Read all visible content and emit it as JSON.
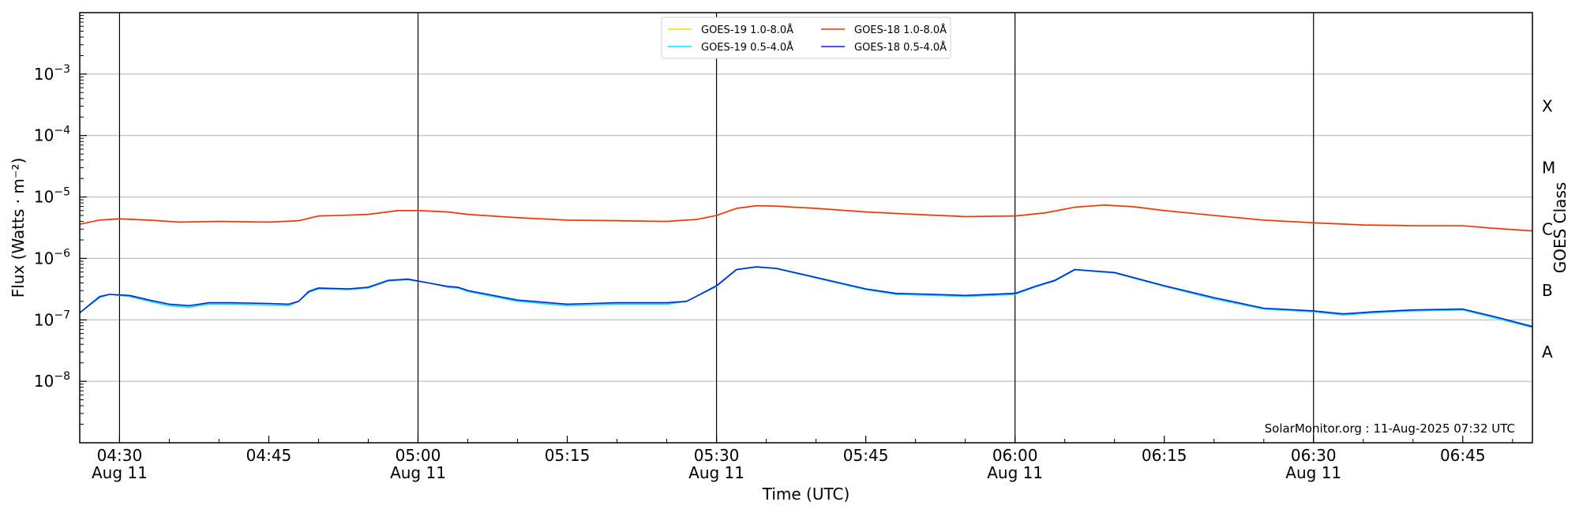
{
  "chart_data": {
    "type": "line",
    "xlabel": "Time (UTC)",
    "ylabel": "Flux (Watts · m⁻²)",
    "ylabel_right": "GOES Class",
    "annotation": "SolarMonitor.org : 11-Aug-2025 07:32 UTC",
    "y_scale": "log",
    "ylim": [
      1e-09,
      0.01
    ],
    "xlim": [
      "04:26",
      "06:52"
    ],
    "grid": "horizontal at decades",
    "legend_position": "top-center",
    "y_ticks": [
      {
        "value": 1e-08,
        "base": "10",
        "exp": "−8"
      },
      {
        "value": 1e-07,
        "base": "10",
        "exp": "−7"
      },
      {
        "value": 1e-06,
        "base": "10",
        "exp": "−6"
      },
      {
        "value": 1e-05,
        "base": "10",
        "exp": "−5"
      },
      {
        "value": 0.0001,
        "base": "10",
        "exp": "−4"
      },
      {
        "value": 0.001,
        "base": "10",
        "exp": "−3"
      }
    ],
    "x_ticks": [
      {
        "time": "04:30",
        "date": "Aug 11"
      },
      {
        "time": "04:45",
        "date": ""
      },
      {
        "time": "05:00",
        "date": "Aug 11"
      },
      {
        "time": "05:15",
        "date": ""
      },
      {
        "time": "05:30",
        "date": "Aug 11"
      },
      {
        "time": "05:45",
        "date": ""
      },
      {
        "time": "06:00",
        "date": "Aug 11"
      },
      {
        "time": "06:15",
        "date": ""
      },
      {
        "time": "06:30",
        "date": "Aug 11"
      },
      {
        "time": "06:45",
        "date": ""
      }
    ],
    "vertical_lines": [
      "04:30",
      "05:00",
      "05:30",
      "06:00",
      "06:30"
    ],
    "goes_classes": [
      {
        "label": "A",
        "value": 3e-08
      },
      {
        "label": "B",
        "value": 3e-07
      },
      {
        "label": "C",
        "value": 3e-06
      },
      {
        "label": "M",
        "value": 3e-05
      },
      {
        "label": "X",
        "value": 0.0003
      }
    ],
    "legend": [
      {
        "key": "g19_long",
        "label": "GOES-19 1.0-8.0Å"
      },
      {
        "key": "g19_short",
        "label": "GOES-19 0.5-4.0Å"
      },
      {
        "key": "g18_long",
        "label": "GOES-18 1.0-8.0Å"
      },
      {
        "key": "g18_short",
        "label": "GOES-18 0.5-4.0Å"
      }
    ],
    "series": [
      {
        "key": "g19_long",
        "name": "GOES-19 1.0-8.0Å",
        "color": "#ffd700",
        "points": [
          [
            "04:26",
            3.6e-06
          ],
          [
            "04:28",
            4.2e-06
          ],
          [
            "04:30",
            4.4e-06
          ],
          [
            "04:33",
            4.2e-06
          ],
          [
            "04:36",
            3.9e-06
          ],
          [
            "04:40",
            4e-06
          ],
          [
            "04:45",
            3.9e-06
          ],
          [
            "04:48",
            4.1e-06
          ],
          [
            "04:50",
            4.9e-06
          ],
          [
            "04:52",
            5e-06
          ],
          [
            "04:55",
            5.2e-06
          ],
          [
            "04:58",
            6e-06
          ],
          [
            "05:00",
            6e-06
          ],
          [
            "05:03",
            5.7e-06
          ],
          [
            "05:05",
            5.2e-06
          ],
          [
            "05:10",
            4.6e-06
          ],
          [
            "05:15",
            4.2e-06
          ],
          [
            "05:20",
            4.1e-06
          ],
          [
            "05:25",
            4e-06
          ],
          [
            "05:28",
            4.3e-06
          ],
          [
            "05:30",
            5e-06
          ],
          [
            "05:32",
            6.5e-06
          ],
          [
            "05:34",
            7.2e-06
          ],
          [
            "05:36",
            7.1e-06
          ],
          [
            "05:40",
            6.5e-06
          ],
          [
            "05:45",
            5.7e-06
          ],
          [
            "05:50",
            5.2e-06
          ],
          [
            "05:55",
            4.8e-06
          ],
          [
            "06:00",
            4.9e-06
          ],
          [
            "06:03",
            5.5e-06
          ],
          [
            "06:06",
            6.8e-06
          ],
          [
            "06:09",
            7.4e-06
          ],
          [
            "06:12",
            6.9e-06
          ],
          [
            "06:15",
            6e-06
          ],
          [
            "06:20",
            5e-06
          ],
          [
            "06:25",
            4.2e-06
          ],
          [
            "06:30",
            3.8e-06
          ],
          [
            "06:35",
            3.5e-06
          ],
          [
            "06:40",
            3.4e-06
          ],
          [
            "06:45",
            3.4e-06
          ],
          [
            "06:48",
            3.1e-06
          ],
          [
            "06:52",
            2.8e-06
          ]
        ]
      },
      {
        "key": "g18_long",
        "name": "GOES-18 1.0-8.0Å",
        "color": "#ff2a00",
        "points": [
          [
            "04:26",
            3.6e-06
          ],
          [
            "04:28",
            4.2e-06
          ],
          [
            "04:30",
            4.4e-06
          ],
          [
            "04:33",
            4.2e-06
          ],
          [
            "04:36",
            3.9e-06
          ],
          [
            "04:40",
            4e-06
          ],
          [
            "04:45",
            3.9e-06
          ],
          [
            "04:48",
            4.1e-06
          ],
          [
            "04:50",
            4.9e-06
          ],
          [
            "04:52",
            5e-06
          ],
          [
            "04:55",
            5.2e-06
          ],
          [
            "04:58",
            6e-06
          ],
          [
            "05:00",
            6e-06
          ],
          [
            "05:03",
            5.7e-06
          ],
          [
            "05:05",
            5.2e-06
          ],
          [
            "05:10",
            4.6e-06
          ],
          [
            "05:15",
            4.2e-06
          ],
          [
            "05:20",
            4.1e-06
          ],
          [
            "05:25",
            4e-06
          ],
          [
            "05:28",
            4.3e-06
          ],
          [
            "05:30",
            5e-06
          ],
          [
            "05:32",
            6.5e-06
          ],
          [
            "05:34",
            7.2e-06
          ],
          [
            "05:36",
            7.1e-06
          ],
          [
            "05:40",
            6.5e-06
          ],
          [
            "05:45",
            5.7e-06
          ],
          [
            "05:50",
            5.2e-06
          ],
          [
            "05:55",
            4.8e-06
          ],
          [
            "06:00",
            4.9e-06
          ],
          [
            "06:03",
            5.5e-06
          ],
          [
            "06:06",
            6.8e-06
          ],
          [
            "06:09",
            7.4e-06
          ],
          [
            "06:12",
            6.9e-06
          ],
          [
            "06:15",
            6e-06
          ],
          [
            "06:20",
            5e-06
          ],
          [
            "06:25",
            4.2e-06
          ],
          [
            "06:30",
            3.8e-06
          ],
          [
            "06:35",
            3.5e-06
          ],
          [
            "06:40",
            3.4e-06
          ],
          [
            "06:45",
            3.4e-06
          ],
          [
            "06:48",
            3.1e-06
          ],
          [
            "06:52",
            2.8e-06
          ]
        ]
      },
      {
        "key": "g19_short",
        "name": "GOES-19 0.5-4.0Å",
        "color": "#00e5ff",
        "points": [
          [
            "04:26",
            1.3e-07
          ],
          [
            "04:28",
            2.3e-07
          ],
          [
            "04:29",
            2.6e-07
          ],
          [
            "04:31",
            2.4e-07
          ],
          [
            "04:33",
            2e-07
          ],
          [
            "04:35",
            1.7e-07
          ],
          [
            "04:37",
            1.6e-07
          ],
          [
            "04:39",
            1.8e-07
          ],
          [
            "04:41",
            1.8e-07
          ],
          [
            "04:45",
            1.75e-07
          ],
          [
            "04:47",
            1.7e-07
          ],
          [
            "04:48",
            2e-07
          ],
          [
            "04:49",
            2.8e-07
          ],
          [
            "04:50",
            3.2e-07
          ],
          [
            "04:53",
            3.1e-07
          ],
          [
            "04:55",
            3.3e-07
          ],
          [
            "04:57",
            4.3e-07
          ],
          [
            "04:59",
            4.5e-07
          ],
          [
            "05:01",
            4e-07
          ],
          [
            "05:03",
            3.4e-07
          ],
          [
            "05:04",
            3.3e-07
          ],
          [
            "05:05",
            2.9e-07
          ],
          [
            "05:10",
            2e-07
          ],
          [
            "05:15",
            1.7e-07
          ],
          [
            "05:20",
            1.8e-07
          ],
          [
            "05:25",
            1.8e-07
          ],
          [
            "05:27",
            2e-07
          ],
          [
            "05:30",
            3.5e-07
          ],
          [
            "05:32",
            6.5e-07
          ],
          [
            "05:34",
            7.2e-07
          ],
          [
            "05:36",
            6.8e-07
          ],
          [
            "05:40",
            4.8e-07
          ],
          [
            "05:45",
            3.1e-07
          ],
          [
            "05:48",
            2.6e-07
          ],
          [
            "05:52",
            2.5e-07
          ],
          [
            "05:55",
            2.4e-07
          ],
          [
            "06:00",
            2.6e-07
          ],
          [
            "06:02",
            3.4e-07
          ],
          [
            "06:04",
            4.3e-07
          ],
          [
            "06:06",
            6.5e-07
          ],
          [
            "06:10",
            5.8e-07
          ],
          [
            "06:15",
            3.5e-07
          ],
          [
            "06:20",
            2.2e-07
          ],
          [
            "06:25",
            1.5e-07
          ],
          [
            "06:30",
            1.35e-07
          ],
          [
            "06:33",
            1.2e-07
          ],
          [
            "06:36",
            1.3e-07
          ],
          [
            "06:40",
            1.4e-07
          ],
          [
            "06:45",
            1.45e-07
          ],
          [
            "06:48",
            1.1e-07
          ],
          [
            "06:52",
            7.5e-08
          ]
        ]
      },
      {
        "key": "g18_short",
        "name": "GOES-18 0.5-4.0Å",
        "color": "#0a1fd6",
        "points": [
          [
            "04:26",
            1.3e-07
          ],
          [
            "04:28",
            2.4e-07
          ],
          [
            "04:29",
            2.6e-07
          ],
          [
            "04:31",
            2.5e-07
          ],
          [
            "04:33",
            2.1e-07
          ],
          [
            "04:35",
            1.8e-07
          ],
          [
            "04:37",
            1.7e-07
          ],
          [
            "04:39",
            1.9e-07
          ],
          [
            "04:41",
            1.9e-07
          ],
          [
            "04:45",
            1.85e-07
          ],
          [
            "04:47",
            1.8e-07
          ],
          [
            "04:48",
            2e-07
          ],
          [
            "04:49",
            2.9e-07
          ],
          [
            "04:50",
            3.3e-07
          ],
          [
            "04:53",
            3.2e-07
          ],
          [
            "04:55",
            3.4e-07
          ],
          [
            "04:57",
            4.4e-07
          ],
          [
            "04:59",
            4.6e-07
          ],
          [
            "05:01",
            4e-07
          ],
          [
            "05:03",
            3.5e-07
          ],
          [
            "05:04",
            3.4e-07
          ],
          [
            "05:05",
            3e-07
          ],
          [
            "05:10",
            2.1e-07
          ],
          [
            "05:15",
            1.8e-07
          ],
          [
            "05:20",
            1.9e-07
          ],
          [
            "05:25",
            1.9e-07
          ],
          [
            "05:27",
            2e-07
          ],
          [
            "05:30",
            3.6e-07
          ],
          [
            "05:32",
            6.6e-07
          ],
          [
            "05:34",
            7.3e-07
          ],
          [
            "05:36",
            6.9e-07
          ],
          [
            "05:40",
            4.9e-07
          ],
          [
            "05:45",
            3.2e-07
          ],
          [
            "05:48",
            2.7e-07
          ],
          [
            "05:52",
            2.6e-07
          ],
          [
            "05:55",
            2.5e-07
          ],
          [
            "06:00",
            2.7e-07
          ],
          [
            "06:02",
            3.5e-07
          ],
          [
            "06:04",
            4.4e-07
          ],
          [
            "06:06",
            6.6e-07
          ],
          [
            "06:10",
            5.9e-07
          ],
          [
            "06:15",
            3.6e-07
          ],
          [
            "06:20",
            2.3e-07
          ],
          [
            "06:25",
            1.55e-07
          ],
          [
            "06:30",
            1.4e-07
          ],
          [
            "06:33",
            1.25e-07
          ],
          [
            "06:36",
            1.35e-07
          ],
          [
            "06:40",
            1.45e-07
          ],
          [
            "06:45",
            1.5e-07
          ],
          [
            "06:48",
            1.15e-07
          ],
          [
            "06:52",
            7.8e-08
          ]
        ]
      }
    ]
  }
}
